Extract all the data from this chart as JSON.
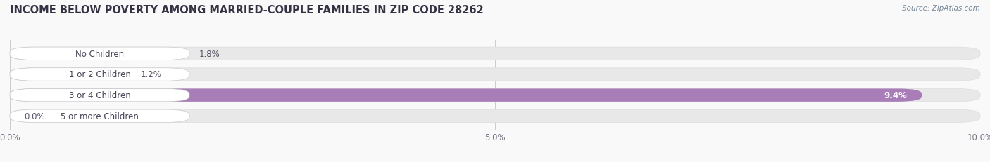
{
  "title": "INCOME BELOW POVERTY AMONG MARRIED-COUPLE FAMILIES IN ZIP CODE 28262",
  "source": "Source: ZipAtlas.com",
  "categories": [
    "No Children",
    "1 or 2 Children",
    "3 or 4 Children",
    "5 or more Children"
  ],
  "values": [
    1.8,
    1.2,
    9.4,
    0.0
  ],
  "bar_colors": [
    "#e8908a",
    "#9ab8d8",
    "#a87db8",
    "#68c0c0"
  ],
  "xlim": [
    0,
    10.0
  ],
  "xticks": [
    0.0,
    5.0,
    10.0
  ],
  "xticklabels": [
    "0.0%",
    "5.0%",
    "10.0%"
  ],
  "background_color": "#f9f9f9",
  "bar_background_color": "#e8e8e8",
  "title_fontsize": 10.5,
  "tick_fontsize": 8.5,
  "label_fontsize": 8.5,
  "value_fontsize": 8.5,
  "bar_height": 0.62,
  "figsize": [
    14.06,
    2.32
  ],
  "dpi": 100
}
